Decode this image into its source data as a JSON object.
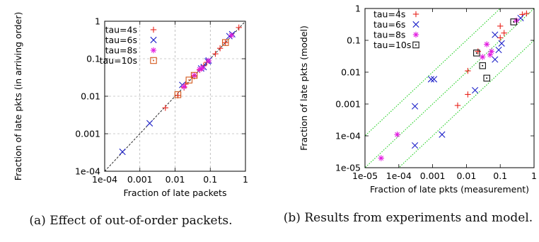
{
  "captions": {
    "a": "(a) Effect of out-of-order packets.",
    "b": "(b) Results from experiments and model."
  },
  "colors": {
    "tau4": "#e8231b",
    "tau6": "#1e22c9",
    "tau8": "#e21ce0",
    "tau10": "#d4571a",
    "tau10_b": "#111111",
    "diag": "#111111",
    "model_lines": "#1ecf1e",
    "grid": "#9a9a9a"
  },
  "chart_data": [
    {
      "id": "a",
      "type": "scatter",
      "xlabel": "Fraction of late packets",
      "ylabel": "Fraction of late pkts (in arriving order)",
      "xscale": "log",
      "yscale": "log",
      "xlim": [
        0.0001,
        1
      ],
      "ylim": [
        0.0001,
        1
      ],
      "xticks": [
        0.0001,
        0.001,
        0.01,
        0.1,
        1
      ],
      "xtick_labels": [
        "1e-04",
        "0.001",
        "0.01",
        "0.1",
        "1"
      ],
      "yticks": [
        0.0001,
        0.001,
        0.01,
        0.1,
        1
      ],
      "ytick_labels": [
        "1e-04",
        "0.001",
        "0.01",
        "0.1",
        "1"
      ],
      "grid": true,
      "legend_position": "top-left",
      "reference_line": "y = x (dashed)",
      "series": [
        {
          "name": "tau=4s",
          "marker": "plus",
          "color": "#e8231b",
          "points": [
            [
              0.0053,
              0.0049
            ],
            [
              0.012,
              0.0105
            ],
            [
              0.018,
              0.017
            ],
            [
              0.02,
              0.021
            ],
            [
              0.035,
              0.034
            ],
            [
              0.05,
              0.05
            ],
            [
              0.065,
              0.065
            ],
            [
              0.08,
              0.08
            ],
            [
              0.14,
              0.135
            ],
            [
              0.19,
              0.19
            ],
            [
              0.27,
              0.27
            ],
            [
              0.65,
              0.68
            ]
          ]
        },
        {
          "name": "tau=6s",
          "marker": "x",
          "color": "#1e22c9",
          "points": [
            [
              0.00032,
              0.00033
            ],
            [
              0.0019,
              0.0019
            ],
            [
              0.016,
              0.02
            ],
            [
              0.055,
              0.055
            ],
            [
              0.065,
              0.06
            ],
            [
              0.085,
              0.085
            ],
            [
              0.09,
              0.09
            ],
            [
              0.35,
              0.4
            ],
            [
              0.42,
              0.45
            ]
          ]
        },
        {
          "name": "tau=8s",
          "marker": "star",
          "color": "#e21ce0",
          "points": [
            [
              0.018,
              0.018
            ],
            [
              0.035,
              0.036
            ],
            [
              0.05,
              0.052
            ],
            [
              0.06,
              0.057
            ],
            [
              0.09,
              0.088
            ],
            [
              0.4,
              0.42
            ]
          ]
        },
        {
          "name": "tau=10s",
          "marker": "square-dot",
          "color": "#d4571a",
          "points": [
            [
              0.012,
              0.011
            ],
            [
              0.025,
              0.027
            ],
            [
              0.035,
              0.036
            ],
            [
              0.27,
              0.27
            ]
          ]
        }
      ]
    },
    {
      "id": "b",
      "type": "scatter",
      "xlabel": "Fraction of late pkts (measurement)",
      "ylabel": "Fraction of late pkts (model)",
      "xscale": "log",
      "yscale": "log",
      "xlim": [
        1e-05,
        1
      ],
      "ylim": [
        1e-05,
        1
      ],
      "xticks": [
        1e-05,
        0.0001,
        0.001,
        0.01,
        0.1,
        1
      ],
      "xtick_labels": [
        "1e-05",
        "1e-04",
        "0.001",
        "0.01",
        "0.1",
        "1"
      ],
      "yticks": [
        1e-05,
        0.0001,
        0.001,
        0.01,
        0.1,
        1
      ],
      "ytick_labels": [
        "1e-05",
        "1e-04",
        "0.001",
        "0.01",
        "0.1",
        "1"
      ],
      "grid": false,
      "legend_position": "top-left",
      "reference_lines": "y = x/10, y = x, y = 10x (dotted)",
      "series": [
        {
          "name": "tau=4s",
          "marker": "plus",
          "color": "#e8231b",
          "points": [
            [
              0.0055,
              0.0009
            ],
            [
              0.011,
              0.002
            ],
            [
              0.011,
              0.011
            ],
            [
              0.022,
              0.045
            ],
            [
              0.1,
              0.28
            ],
            [
              0.1,
              0.12
            ],
            [
              0.13,
              0.17
            ],
            [
              0.45,
              0.65
            ],
            [
              0.6,
              0.7
            ]
          ]
        },
        {
          "name": "tau=6s",
          "marker": "x",
          "color": "#1e22c9",
          "points": [
            [
              0.0003,
              0.00085
            ],
            [
              0.0009,
              0.006
            ],
            [
              0.0011,
              0.006
            ],
            [
              0.0003,
              5e-05
            ],
            [
              0.0019,
              0.00011
            ],
            [
              0.018,
              0.0027
            ],
            [
              0.07,
              0.025
            ],
            [
              0.07,
              0.15
            ],
            [
              0.09,
              0.05
            ],
            [
              0.11,
              0.08
            ],
            [
              0.4,
              0.5
            ]
          ]
        },
        {
          "name": "tau=8s",
          "marker": "star",
          "color": "#e21ce0",
          "points": [
            [
              3e-05,
              2e-05
            ],
            [
              9e-05,
              0.00011
            ],
            [
              0.03,
              0.03
            ],
            [
              0.04,
              0.075
            ],
            [
              0.05,
              0.035
            ],
            [
              0.055,
              0.045
            ],
            [
              0.3,
              0.42
            ]
          ]
        },
        {
          "name": "tau=10s",
          "marker": "square-dot",
          "color": "#111111",
          "points": [
            [
              0.02,
              0.04
            ],
            [
              0.03,
              0.016
            ],
            [
              0.04,
              0.0065
            ],
            [
              0.25,
              0.38
            ]
          ]
        }
      ]
    }
  ]
}
